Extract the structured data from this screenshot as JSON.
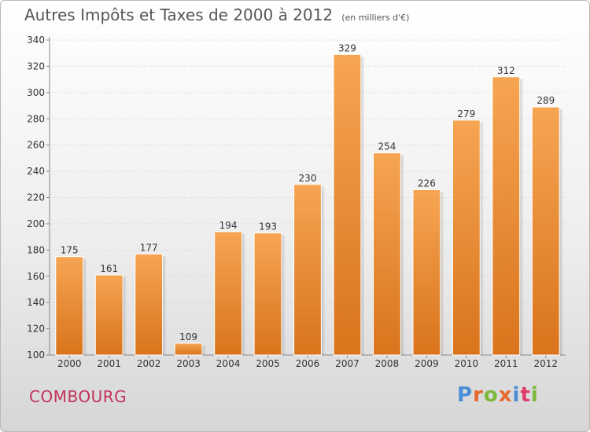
{
  "chart_data": {
    "type": "bar",
    "title": "Autres Impôts et Taxes de 2000 à 2012",
    "subtitle": "(en milliers d'€)",
    "categories": [
      "2000",
      "2001",
      "2002",
      "2003",
      "2004",
      "2005",
      "2006",
      "2007",
      "2008",
      "2009",
      "2010",
      "2011",
      "2012"
    ],
    "values": [
      175,
      161,
      177,
      109,
      194,
      193,
      230,
      329,
      254,
      226,
      279,
      312,
      289
    ],
    "ylim": [
      100,
      340
    ],
    "yticks": [
      100,
      120,
      140,
      160,
      180,
      200,
      220,
      240,
      260,
      280,
      300,
      320,
      340
    ],
    "xlabel": "",
    "ylabel": "",
    "grid": true,
    "bar_color_top": "#f6a553",
    "bar_color_bottom": "#d9741c"
  },
  "footer": {
    "town": "COMBOURG",
    "brand": "Proxiti",
    "brand_colors": [
      "#4a8fd6",
      "#e9692c",
      "#7bb83a",
      "#e9692c",
      "#4a8fd6",
      "#e03a6a",
      "#7bb83a"
    ]
  }
}
